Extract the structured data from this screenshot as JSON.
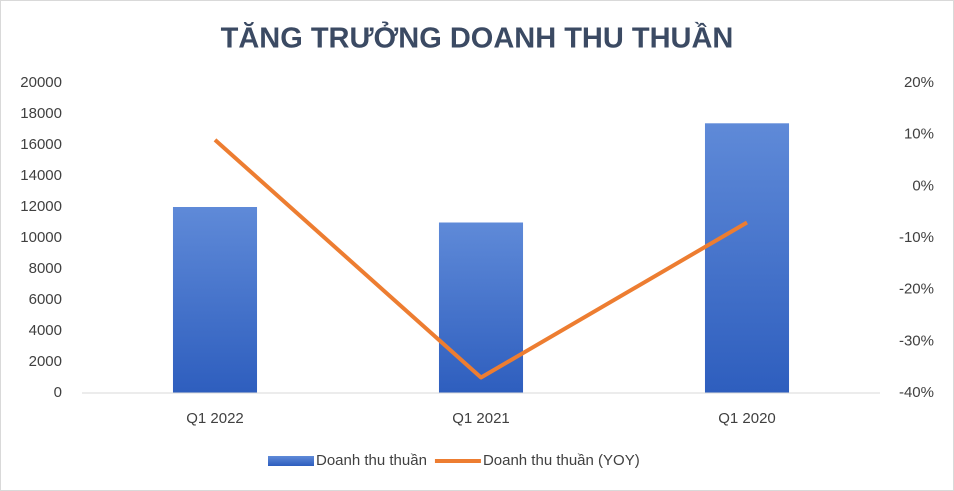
{
  "chart_data": {
    "type": "bar",
    "title": "TĂNG TRƯỞNG DOANH THU THUẦN",
    "categories": [
      "Q1 2022",
      "Q1 2021",
      "Q1 2020"
    ],
    "series": [
      {
        "name": "Doanh thu thuần",
        "type": "bar",
        "color": "#4472c4",
        "values": [
          12000,
          11000,
          17400
        ]
      },
      {
        "name": "Doanh thu thuần (YOY)",
        "type": "line",
        "axis": "y2",
        "color": "#ed7d31",
        "values": [
          9,
          -37,
          -7
        ]
      }
    ],
    "ylim": [
      0,
      20000
    ],
    "yticks": [
      0,
      2000,
      4000,
      6000,
      8000,
      10000,
      12000,
      14000,
      16000,
      18000,
      20000
    ],
    "y2lim": [
      -40,
      20
    ],
    "y2ticks": [
      {
        "value": -40,
        "label": "-40%"
      },
      {
        "value": -30,
        "label": "-30%"
      },
      {
        "value": -20,
        "label": "-20%"
      },
      {
        "value": -10,
        "label": "-10%"
      },
      {
        "value": 0,
        "label": "0%"
      },
      {
        "value": 10,
        "label": "10%"
      },
      {
        "value": 20,
        "label": "20%"
      }
    ],
    "grid": false,
    "legend": "bottom"
  }
}
